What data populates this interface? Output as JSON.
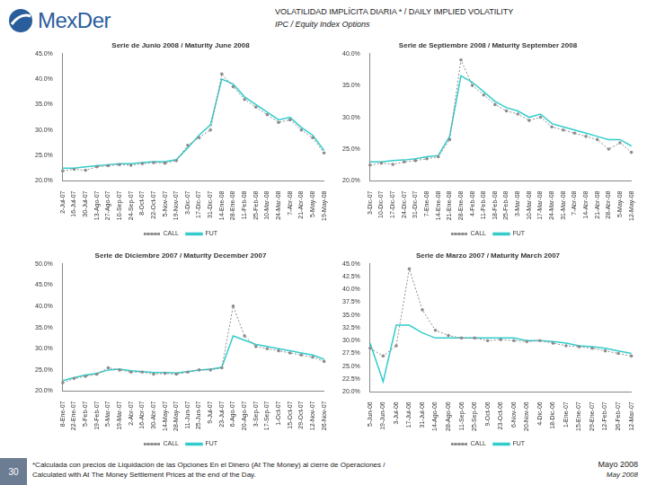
{
  "header": {
    "logo": "MexDer",
    "title": "VOLATILIDAD IMPLÍCITA DIARIA * / DAILY IMPLIED VOLATILITY",
    "subtitle": "IPC / Equity Index Options"
  },
  "footer": {
    "page": "30",
    "note": [
      "*Calculada con precios de Liquidación de las Opciones En el Dinero (At The Money) al cierre de Operaciones /",
      "Calculated with At The Money Settlement Prices at the end of the Day."
    ],
    "date": "Mayo 2008",
    "date_en": "May 2008"
  },
  "chart_data": [
    {
      "type": "line",
      "title": "Serie de Junio 2008 / Maturity June 2008",
      "categories": [
        "2-Jul-07",
        "16-Jul-07",
        "30-Jul-07",
        "13-Ago-07",
        "27-Ago-07",
        "10-Sep-07",
        "24-Sep-07",
        "8-Oct-07",
        "22-Oct-07",
        "5-Nov-07",
        "19-Nov-07",
        "3-Dic-07",
        "17-Dic-07",
        "31-Dic-07",
        "14-Ene-08",
        "28-Ene-08",
        "11-Feb-08",
        "25-Feb-08",
        "10-Mar-08",
        "24-Mar-08",
        "7-Abr-08",
        "21-Abr-08",
        "5-May-08",
        "19-May-08"
      ],
      "series": [
        {
          "name": "CALL",
          "color": "#8c8c8c",
          "marker": "circle",
          "line_style": "dotted",
          "values": [
            22.0,
            22.3,
            22.1,
            22.8,
            23.0,
            23.2,
            23.1,
            23.4,
            23.6,
            23.5,
            24.0,
            27.0,
            28.5,
            30.0,
            41.0,
            38.5,
            36.0,
            34.5,
            33.0,
            31.5,
            32.0,
            30.0,
            28.5,
            25.5
          ]
        },
        {
          "name": "FUT",
          "color": "#33cccc",
          "marker": "none",
          "line_style": "solid",
          "values": [
            22.5,
            22.5,
            22.8,
            23.0,
            23.2,
            23.4,
            23.4,
            23.6,
            23.8,
            23.8,
            24.2,
            26.5,
            29.0,
            31.0,
            40.0,
            39.0,
            36.5,
            35.0,
            33.5,
            32.0,
            32.5,
            30.5,
            29.0,
            26.0
          ]
        }
      ],
      "ylim": [
        20,
        45
      ],
      "yticks": [
        {
          "value": 20,
          "label": "20.0%"
        },
        {
          "value": 25,
          "label": "25.0%"
        },
        {
          "value": 30,
          "label": "30.0%"
        },
        {
          "value": 35,
          "label": "35.0%"
        },
        {
          "value": 40,
          "label": "40.0%"
        },
        {
          "value": 45,
          "label": "45.0%"
        }
      ],
      "grid": false,
      "legend": "bottom"
    },
    {
      "type": "line",
      "title": "Serie de Septiembre 2008 / Maturity September 2008",
      "categories": [
        "3-Dic-07",
        "10-Dic-07",
        "17-Dic-07",
        "24-Dic-07",
        "31-Dic-07",
        "7-Ene-08",
        "14-Ene-08",
        "21-Ene-08",
        "28-Ene-08",
        "4-Feb-08",
        "11-Feb-08",
        "18-Feb-08",
        "25-Feb-08",
        "3-Mar-08",
        "10-Mar-08",
        "17-Mar-08",
        "24-Mar-08",
        "31-Mar-08",
        "7-Abr-08",
        "14-Abr-08",
        "21-Abr-08",
        "28-Abr-08",
        "5-May-08",
        "12-May-08"
      ],
      "series": [
        {
          "name": "CALL",
          "color": "#8c8c8c",
          "marker": "circle",
          "line_style": "dotted",
          "values": [
            22.5,
            22.8,
            22.6,
            23.0,
            23.2,
            23.5,
            23.8,
            26.5,
            39.0,
            35.0,
            33.5,
            32.0,
            31.0,
            30.5,
            29.5,
            30.0,
            28.5,
            28.0,
            27.5,
            27.0,
            26.5,
            25.0,
            26.0,
            24.5
          ]
        },
        {
          "name": "FUT",
          "color": "#33cccc",
          "marker": "none",
          "line_style": "solid",
          "values": [
            23.0,
            23.0,
            23.2,
            23.3,
            23.5,
            23.8,
            24.0,
            27.0,
            36.5,
            35.5,
            34.0,
            32.5,
            31.5,
            31.0,
            30.0,
            30.5,
            29.0,
            28.5,
            28.0,
            27.5,
            27.0,
            26.5,
            26.5,
            25.5
          ]
        }
      ],
      "ylim": [
        20,
        40
      ],
      "yticks": [
        {
          "value": 20,
          "label": "20.0%"
        },
        {
          "value": 25,
          "label": "25.0%"
        },
        {
          "value": 30,
          "label": "30.0%"
        },
        {
          "value": 35,
          "label": "35.0%"
        },
        {
          "value": 40,
          "label": "40.0%"
        }
      ],
      "grid": false,
      "legend": "bottom"
    },
    {
      "type": "line",
      "title": "Serie de Diciembre 2007 / Maturity December 2007",
      "categories": [
        "8-Ene-07",
        "22-Ene-07",
        "5-Feb-07",
        "19-Feb-07",
        "5-Mar-07",
        "19-Mar-07",
        "2-Abr-07",
        "16-Abr-07",
        "30-Abr-07",
        "14-May-07",
        "28-May-07",
        "11-Jun-07",
        "25-Jun-07",
        "9-Jul-07",
        "23-Jul-07",
        "6-Ago-07",
        "20-Ago-07",
        "3-Sep-07",
        "17-Sep-07",
        "1-Oct-07",
        "15-Oct-07",
        "29-Oct-07",
        "12-Nov-07",
        "26-Nov-07"
      ],
      "series": [
        {
          "name": "CALL",
          "color": "#8c8c8c",
          "marker": "circle",
          "line_style": "dotted",
          "values": [
            22.0,
            23.0,
            23.5,
            24.0,
            25.5,
            25.0,
            24.5,
            24.5,
            24.0,
            24.2,
            24.0,
            24.5,
            25.0,
            25.0,
            25.5,
            40.0,
            33.0,
            30.5,
            30.0,
            29.5,
            29.0,
            28.5,
            28.0,
            27.0
          ]
        },
        {
          "name": "FUT",
          "color": "#33cccc",
          "marker": "none",
          "line_style": "solid",
          "values": [
            22.5,
            23.2,
            23.8,
            24.2,
            25.0,
            25.2,
            24.8,
            24.6,
            24.4,
            24.4,
            24.3,
            24.6,
            25.0,
            25.2,
            25.6,
            33.0,
            32.0,
            31.0,
            30.5,
            30.0,
            29.5,
            29.0,
            28.5,
            27.5
          ]
        }
      ],
      "ylim": [
        20,
        50
      ],
      "yticks": [
        {
          "value": 20,
          "label": "20.0%"
        },
        {
          "value": 25,
          "label": "25.0%"
        },
        {
          "value": 30,
          "label": "30.0%"
        },
        {
          "value": 35,
          "label": "35.0%"
        },
        {
          "value": 40,
          "label": "40.0%"
        },
        {
          "value": 45,
          "label": "45.0%"
        },
        {
          "value": 50,
          "label": "50.0%"
        }
      ],
      "grid": false,
      "legend": "bottom"
    },
    {
      "type": "line",
      "title": "Serie de Marzo 2007 / Maturity March 2007",
      "categories": [
        "5-Jun-06",
        "19-Jun-06",
        "3-Jul-06",
        "17-Jul-06",
        "31-Jul-06",
        "14-Ago-06",
        "28-Ago-06",
        "11-Sep-06",
        "25-Sep-06",
        "9-Oct-06",
        "23-Oct-06",
        "6-Nov-06",
        "20-Nov-06",
        "4-Dic-06",
        "18-Dic-06",
        "1-Ene-07",
        "15-Ene-07",
        "29-Ene-07",
        "12-Feb-07",
        "26-Feb-07",
        "12-Mar-07"
      ],
      "series": [
        {
          "name": "CALL",
          "color": "#8c8c8c",
          "marker": "circle",
          "line_style": "dotted",
          "values": [
            28.5,
            27.0,
            29.0,
            44.0,
            36.0,
            32.0,
            31.0,
            30.5,
            30.5,
            30.0,
            30.2,
            30.0,
            29.8,
            30.0,
            29.5,
            29.0,
            28.8,
            28.5,
            28.0,
            27.5,
            27.0
          ]
        },
        {
          "name": "FUT",
          "color": "#33cccc",
          "marker": "none",
          "line_style": "solid",
          "values": [
            29.5,
            22.0,
            33.0,
            33.0,
            31.5,
            30.5,
            30.5,
            30.5,
            30.5,
            30.5,
            30.5,
            30.5,
            30.0,
            30.0,
            29.8,
            29.5,
            29.0,
            28.8,
            28.5,
            28.0,
            27.5
          ]
        }
      ],
      "ylim": [
        20,
        45
      ],
      "yticks": [
        {
          "value": 20,
          "label": "20.0%"
        },
        {
          "value": 22.5,
          "label": "22.5%"
        },
        {
          "value": 25,
          "label": "25.0%"
        },
        {
          "value": 27.5,
          "label": "27.5%"
        },
        {
          "value": 30,
          "label": "30.0%"
        },
        {
          "value": 32.5,
          "label": "32.5%"
        },
        {
          "value": 35,
          "label": "35.0%"
        },
        {
          "value": 37.5,
          "label": "37.5%"
        },
        {
          "value": 40,
          "label": "40.0%"
        },
        {
          "value": 42.5,
          "label": "42.5%"
        },
        {
          "value": 45,
          "label": "45.0%"
        }
      ],
      "grid": false,
      "legend": "bottom"
    }
  ]
}
